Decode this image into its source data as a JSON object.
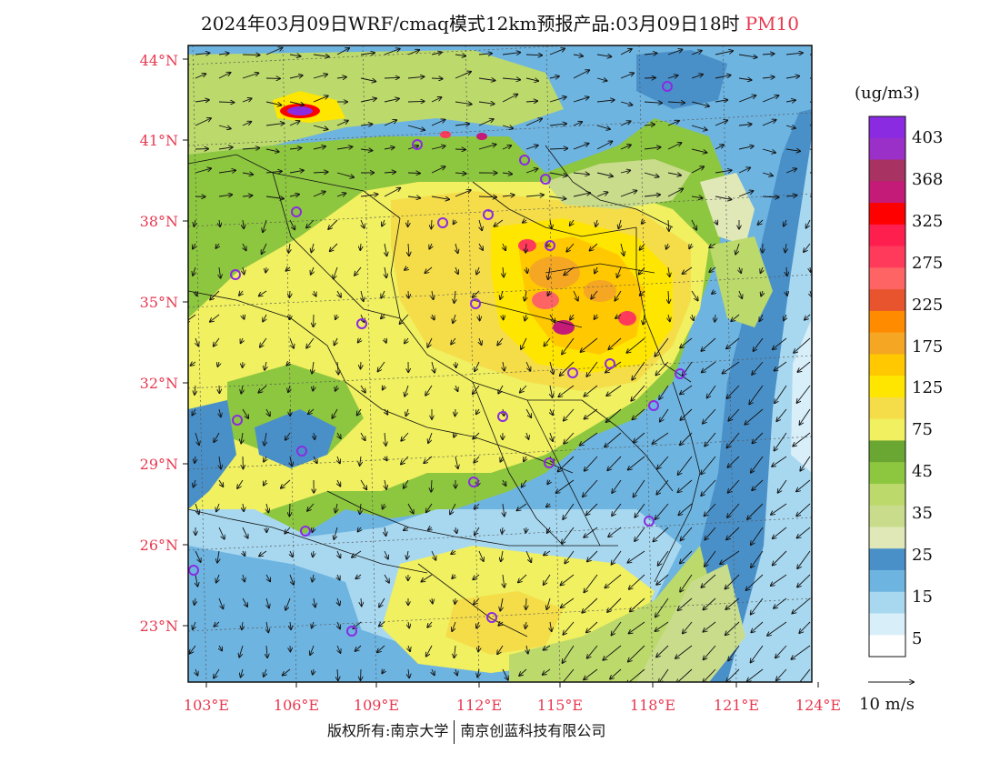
{
  "title": {
    "main": "2024年03月09日WRF/cmaq模式12km预报产品:03月09日18时",
    "pollutant": "PM10"
  },
  "axes": {
    "lat_labels": [
      "44°N",
      "41°N",
      "38°N",
      "35°N",
      "32°N",
      "29°N",
      "26°N",
      "23°N"
    ],
    "lon_labels": [
      "103°E",
      "106°E",
      "109°E",
      "112°E",
      "115°E",
      "118°E",
      "121°E",
      "124°E"
    ]
  },
  "colorbar": {
    "unit": "(ug/m3)",
    "labels": [
      "403",
      "368",
      "325",
      "275",
      "225",
      "175",
      "125",
      "75",
      "45",
      "35",
      "25",
      "15",
      "5"
    ],
    "colors": [
      "#8a2be2",
      "#9b30c8",
      "#a83262",
      "#c41a78",
      "#ff0000",
      "#ff1f4f",
      "#ff3a5a",
      "#ff6464",
      "#e8542e",
      "#ff8c00",
      "#f5a623",
      "#ffc800",
      "#ffe600",
      "#f5dd4a",
      "#f0f060",
      "#6aa632",
      "#8dc63f",
      "#bcd96b",
      "#c8dc8c",
      "#e0e8b8",
      "#4a90c8",
      "#6eb4e0",
      "#a8d8f0",
      "#d8eef8",
      "#ffffff"
    ]
  },
  "wind": {
    "reference_label": "10 m/s"
  },
  "footer": {
    "copyright_left": "版权所有:南京大学",
    "copyright_right": "南京创蓝科技有限公司"
  }
}
